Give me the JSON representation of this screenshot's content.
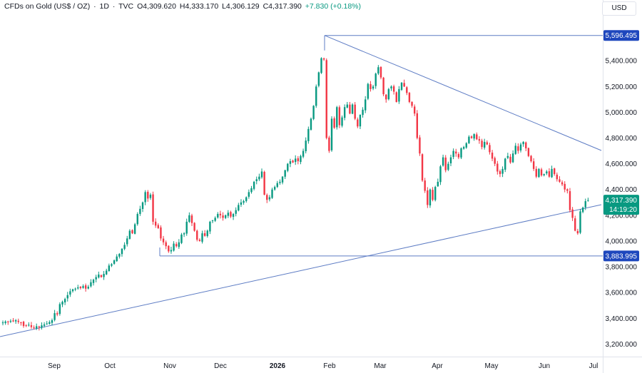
{
  "header": {
    "symbol": "CFDs on Gold (US$ / OZ)",
    "interval": "1D",
    "source": "TVC",
    "open": "O4,309.620",
    "high": "H4,333.170",
    "low": "L4,306.129",
    "close": "C4,317.390",
    "change": "+7.830 (+0.18%)",
    "separator": "·"
  },
  "currency": "USD",
  "colors": {
    "up": "#089981",
    "down": "#f23645",
    "line": "#5d7cc4",
    "price_tag": "#089981",
    "level_tag": "#1e47bd"
  },
  "chart_data": {
    "type": "candlestick",
    "y_ticks": [
      "5,400.000",
      "5,200.000",
      "5,000.000",
      "4,800.000",
      "4,600.000",
      "4,400.000",
      "4,200.000",
      "4,000.000",
      "3,800.000",
      "3,600.000",
      "3,400.000",
      "3,200.000"
    ],
    "y_tick_values": [
      5400,
      5200,
      5000,
      4800,
      4600,
      4400,
      4200,
      4000,
      3800,
      3600,
      3400,
      3200
    ],
    "ylim": [
      3120,
      5840
    ],
    "x_ticks": [
      "Sep",
      "Oct",
      "Nov",
      "Dec",
      "2026",
      "Feb",
      "Mar",
      "Apr",
      "May",
      "Jun",
      "Jul"
    ],
    "x_bold": "2026",
    "levels": [
      {
        "value": 5596.495,
        "label": "5,596.495"
      },
      {
        "value": 3883.995,
        "label": "3,883.995"
      }
    ],
    "last_price": {
      "value": 4317.39,
      "label": "4,317.390",
      "countdown": "14:19:20"
    },
    "closes": [
      3368,
      3375,
      3372,
      3380,
      3376,
      3385,
      3372,
      3368,
      3340,
      3345,
      3350,
      3332,
      3325,
      3338,
      3330,
      3345,
      3352,
      3360,
      3370,
      3385,
      3440,
      3430,
      3510,
      3528,
      3550,
      3580,
      3610,
      3625,
      3630,
      3640,
      3635,
      3650,
      3630,
      3645,
      3680,
      3700,
      3720,
      3740,
      3720,
      3745,
      3770,
      3810,
      3820,
      3850,
      3880,
      3900,
      3940,
      3970,
      4020,
      4080,
      4060,
      4130,
      4210,
      4250,
      4300,
      4380,
      4330,
      4360,
      4150,
      4120,
      4100,
      4020,
      3990,
      3960,
      3920,
      3930,
      3980,
      3960,
      3990,
      4050,
      4060,
      4150,
      4200,
      4140,
      4080,
      4010,
      4000,
      4060,
      4040,
      4080,
      4150,
      4160,
      4180,
      4210,
      4200,
      4180,
      4200,
      4220,
      4190,
      4210,
      4240,
      4280,
      4300,
      4310,
      4340,
      4380,
      4410,
      4460,
      4480,
      4500,
      4540,
      4360,
      4320,
      4340,
      4400,
      4420,
      4450,
      4460,
      4500,
      4550,
      4600,
      4620,
      4610,
      4640,
      4620,
      4660,
      4700,
      4780,
      4870,
      4950,
      5050,
      5200,
      5310,
      5420,
      5410,
      4800,
      4700,
      4950,
      4880,
      5040,
      4900,
      4960,
      5040,
      5060,
      4990,
      5060,
      4950,
      4890,
      4980,
      5020,
      5100,
      5220,
      5180,
      5200,
      5300,
      5350,
      5270,
      5140,
      5100,
      5180,
      5200,
      5160,
      5080,
      5180,
      5230,
      5200,
      5150,
      5080,
      5050,
      4990,
      4800,
      4680,
      4470,
      4390,
      4280,
      4400,
      4320,
      4420,
      4460,
      4580,
      4650,
      4550,
      4600,
      4650,
      4700,
      4680,
      4650,
      4720,
      4730,
      4760,
      4810,
      4800,
      4830,
      4790,
      4780,
      4730,
      4770,
      4750,
      4690,
      4640,
      4600,
      4540,
      4520,
      4560,
      4640,
      4660,
      4610,
      4680,
      4740,
      4700,
      4750,
      4770,
      4720,
      4660,
      4620,
      4560,
      4500,
      4560,
      4510,
      4520,
      4540,
      4500,
      4560,
      4520,
      4480,
      4460,
      4440,
      4400,
      4390,
      4240,
      4180,
      4080,
      4060,
      4230,
      4260,
      4309.62,
      4317.39
    ]
  }
}
